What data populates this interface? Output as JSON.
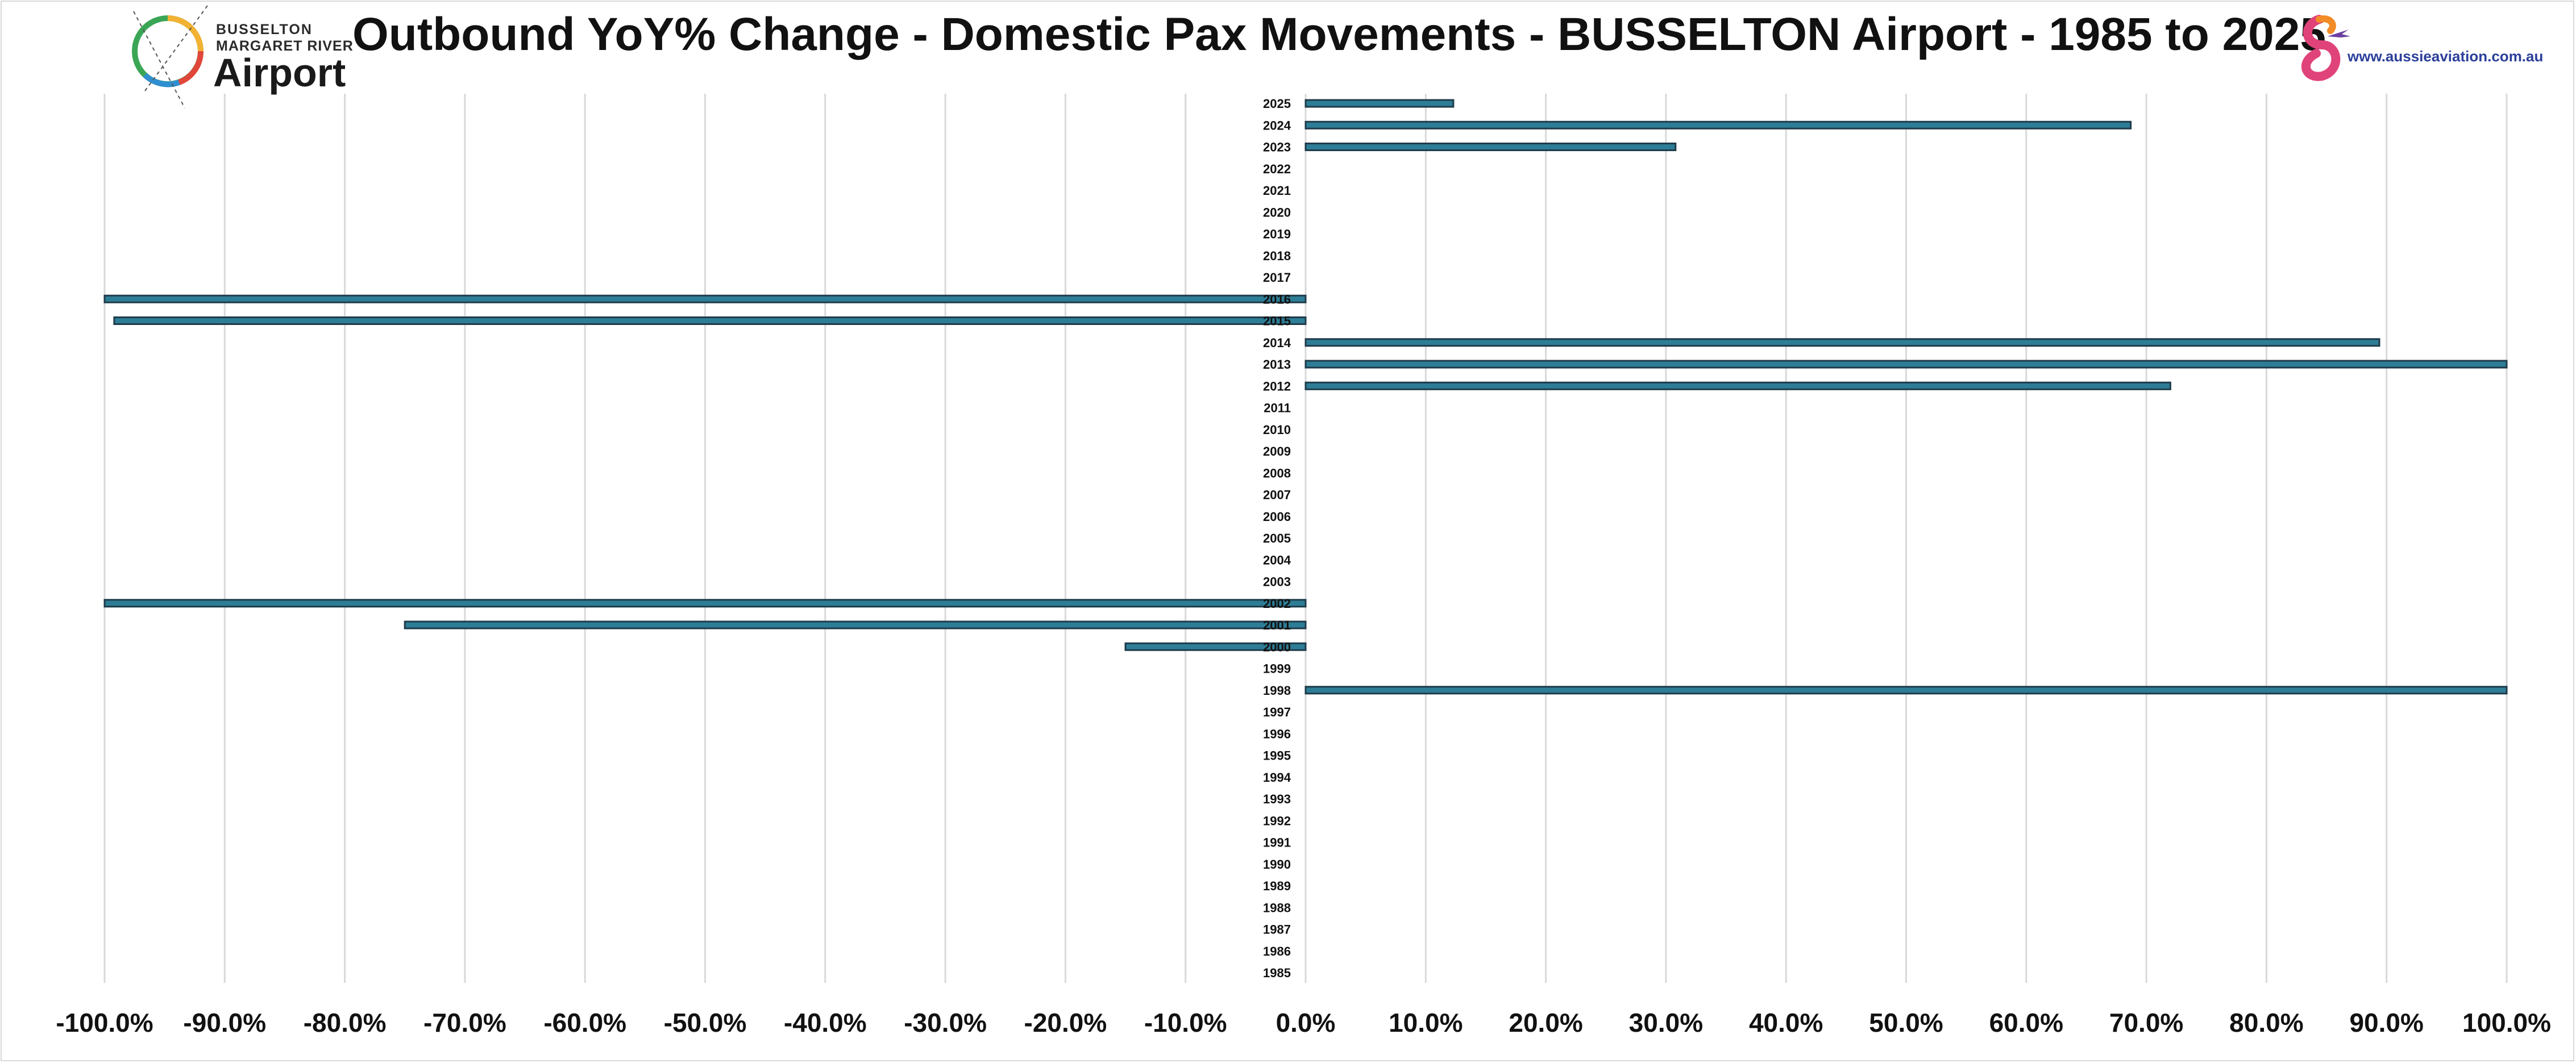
{
  "header": {
    "title": "Outbound YoY% Change - Domestic Pax Movements - BUSSELTON Airport - 1985 to 2025"
  },
  "logos": {
    "left": {
      "line1": "BUSSELTON",
      "line2": "MARGARET RIVER",
      "line3": "Airport",
      "icon": "airport-ring-logo-icon"
    },
    "right": {
      "url": "www.aussieaviation.com.au",
      "icon": "aussie-aviation-logo-icon"
    }
  },
  "colors": {
    "bar_fill": "#2e7d96",
    "bar_border": "#1f3b4a",
    "grid": "#d9d9d9",
    "text": "#111111"
  },
  "chart_data": {
    "type": "bar",
    "orientation": "horizontal",
    "title": "Outbound YoY% Change - Domestic Pax Movements - BUSSELTON Airport - 1985 to 2025",
    "xlabel": "",
    "ylabel": "",
    "xlim": [
      -100,
      100
    ],
    "x_ticks": [
      "-100.0%",
      "-90.0%",
      "-80.0%",
      "-70.0%",
      "-60.0%",
      "-50.0%",
      "-40.0%",
      "-30.0%",
      "-20.0%",
      "-10.0%",
      "0.0%",
      "10.0%",
      "20.0%",
      "30.0%",
      "40.0%",
      "50.0%",
      "60.0%",
      "70.0%",
      "80.0%",
      "90.0%",
      "100.0%"
    ],
    "x_tick_values": [
      -100,
      -90,
      -80,
      -70,
      -60,
      -50,
      -40,
      -30,
      -20,
      -10,
      0,
      10,
      20,
      30,
      40,
      50,
      60,
      70,
      80,
      90,
      100
    ],
    "grid": true,
    "legend": "none",
    "categories": [
      "2025",
      "2024",
      "2023",
      "2022",
      "2021",
      "2020",
      "2019",
      "2018",
      "2017",
      "2016",
      "2015",
      "2014",
      "2013",
      "2012",
      "2011",
      "2010",
      "2009",
      "2008",
      "2007",
      "2006",
      "2005",
      "2004",
      "2003",
      "2002",
      "2001",
      "2000",
      "1999",
      "1998",
      "1997",
      "1996",
      "1995",
      "1994",
      "1993",
      "1992",
      "1991",
      "1990",
      "1989",
      "1988",
      "1987",
      "1986",
      "1985"
    ],
    "values": [
      12.3,
      68.7,
      30.8,
      0,
      0,
      0,
      0,
      0,
      0,
      -100.0,
      -99.2,
      89.4,
      100.0,
      72.0,
      0,
      0,
      0,
      0,
      0,
      0,
      0,
      0,
      0,
      -100.0,
      -75.0,
      -15.0,
      0,
      100.0,
      0,
      0,
      0,
      0,
      0,
      0,
      0,
      0,
      0,
      0,
      0,
      0,
      0
    ]
  }
}
